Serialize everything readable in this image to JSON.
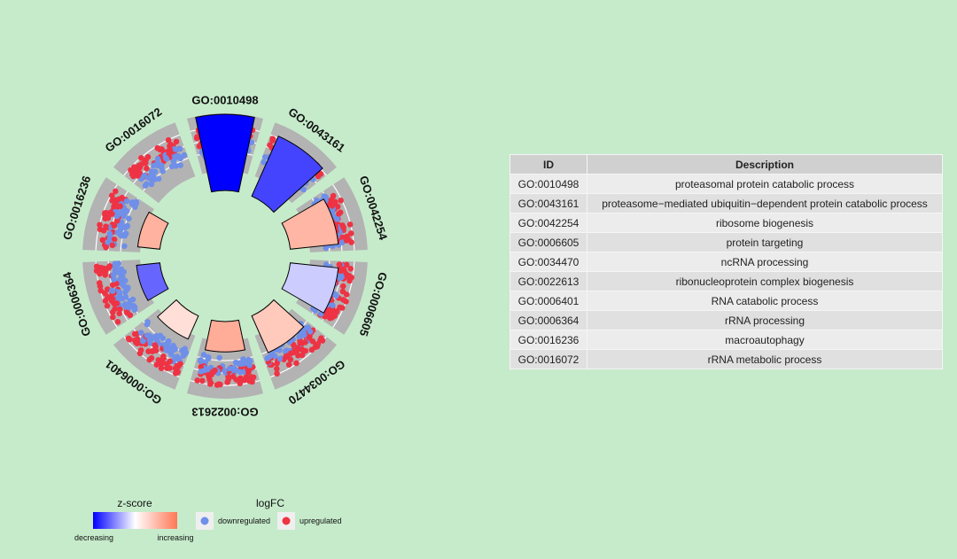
{
  "chart_data": {
    "type": "circular-go-plot",
    "terms": [
      {
        "id": "GO:0010498",
        "zscore": -3.0,
        "size": 1.0,
        "down": 0.55,
        "up": 0.45
      },
      {
        "id": "GO:0043161",
        "zscore": -2.2,
        "size": 0.83,
        "down": 0.55,
        "up": 0.45
      },
      {
        "id": "GO:0042254",
        "zscore": 1.6,
        "size": 0.55,
        "down": 0.55,
        "up": 0.45
      },
      {
        "id": "GO:0006605",
        "zscore": -0.6,
        "size": 0.55,
        "down": 0.45,
        "up": 0.55
      },
      {
        "id": "GO:0034470",
        "zscore": 1.2,
        "size": 0.42,
        "down": 0.55,
        "up": 0.45
      },
      {
        "id": "GO:0022613",
        "zscore": 1.8,
        "size": 0.26,
        "down": 0.5,
        "up": 0.5
      },
      {
        "id": "GO:0006401",
        "zscore": 0.7,
        "size": 0.18,
        "down": 0.55,
        "up": 0.45
      },
      {
        "id": "GO:0006364",
        "zscore": -1.8,
        "size": 0.15,
        "down": 0.5,
        "up": 0.5
      },
      {
        "id": "GO:0016236",
        "zscore": 1.7,
        "size": 0.13,
        "down": 0.55,
        "up": 0.45
      },
      {
        "id": "GO:0016072",
        "zscore": 0,
        "size": 0,
        "down": 0.5,
        "up": 0.5
      }
    ],
    "legend": {
      "zscore_title": "z-score",
      "zscore_low": "decreasing",
      "zscore_high": "increasing",
      "logfc_title": "logFC",
      "down_label": "downregulated",
      "up_label": "upregulated"
    },
    "colors": {
      "down": "#6f8fe8",
      "up": "#ee3344",
      "track": "#b3b3b3",
      "z_low": "#0000ff",
      "z_mid": "#ffffff",
      "z_high": "#ff6644"
    }
  },
  "table": {
    "headers": {
      "id": "ID",
      "description": "Description"
    },
    "rows": [
      {
        "id": "GO:0010498",
        "description": "proteasomal protein catabolic process"
      },
      {
        "id": "GO:0043161",
        "description": "proteasome−mediated ubiquitin−dependent protein catabolic process"
      },
      {
        "id": "GO:0042254",
        "description": "ribosome biogenesis"
      },
      {
        "id": "GO:0006605",
        "description": "protein targeting"
      },
      {
        "id": "GO:0034470",
        "description": "ncRNA processing"
      },
      {
        "id": "GO:0022613",
        "description": "ribonucleoprotein complex biogenesis"
      },
      {
        "id": "GO:0006401",
        "description": "RNA catabolic process"
      },
      {
        "id": "GO:0006364",
        "description": "rRNA processing"
      },
      {
        "id": "GO:0016236",
        "description": "macroautophagy"
      },
      {
        "id": "GO:0016072",
        "description": "rRNA metabolic process"
      }
    ]
  }
}
